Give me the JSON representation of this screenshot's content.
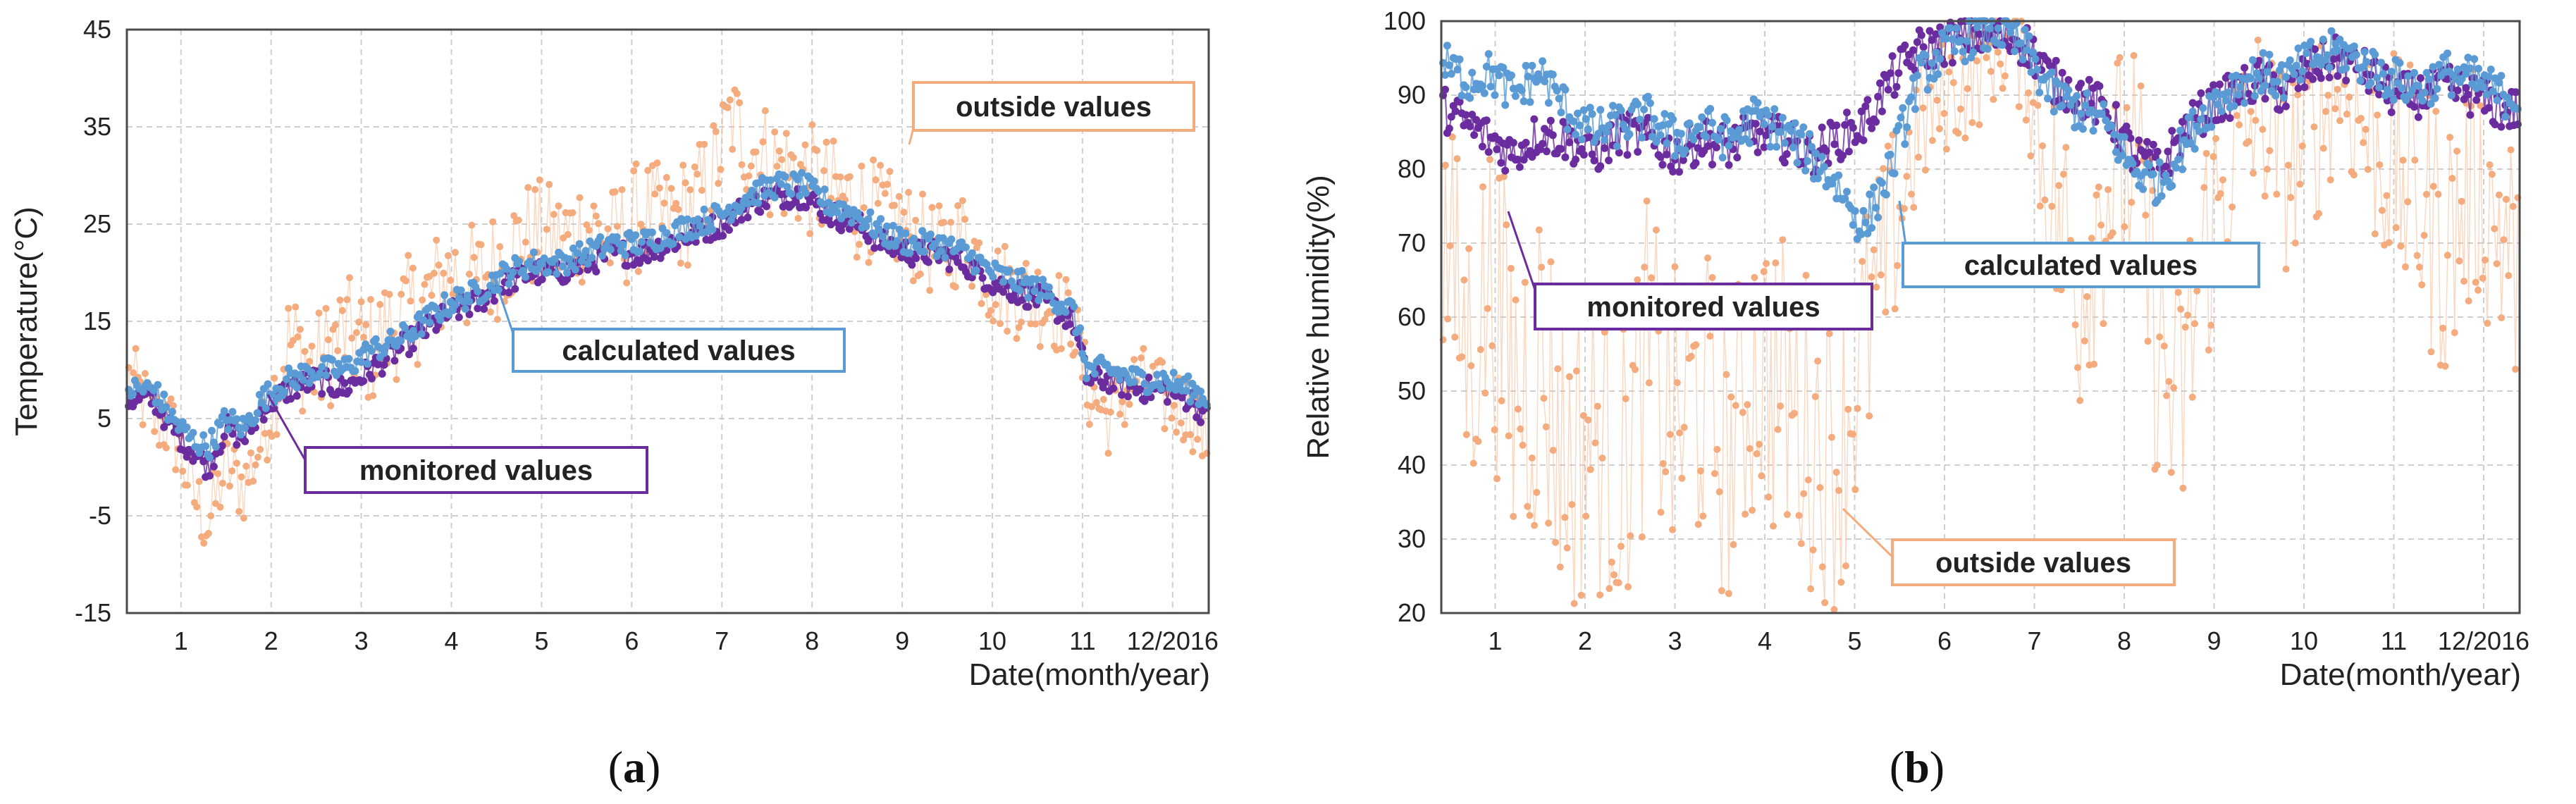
{
  "colors": {
    "outside": "#f4ab7d",
    "monitored": "#6a2c9f",
    "calculated": "#5b9bd5",
    "grid": "#cfcfcf",
    "axis": "#4a4a4a"
  },
  "chart_data": [
    {
      "panel": "a",
      "panel_label": "(a)",
      "panel_letter": "a",
      "type": "scatter",
      "title": "",
      "ylabel": "Temperature(°C)",
      "xlabel": "Date(month/year)",
      "xlim": [
        0.4,
        12.4
      ],
      "ylim": [
        -15,
        45
      ],
      "yticks": [
        -15,
        -5,
        5,
        15,
        25,
        35,
        45
      ],
      "xticks": [
        {
          "value": 1,
          "label": "1"
        },
        {
          "value": 2,
          "label": "2"
        },
        {
          "value": 3,
          "label": "3"
        },
        {
          "value": 4,
          "label": "4"
        },
        {
          "value": 5,
          "label": "5"
        },
        {
          "value": 6,
          "label": "6"
        },
        {
          "value": 7,
          "label": "7"
        },
        {
          "value": 8,
          "label": "8"
        },
        {
          "value": 9,
          "label": "9"
        },
        {
          "value": 10,
          "label": "10"
        },
        {
          "value": 11,
          "label": "11"
        },
        {
          "value": 12,
          "label": "12/2016"
        }
      ],
      "series": [
        {
          "name": "outside values",
          "color_key": "outside",
          "x": [
            0.45,
            0.7,
            0.9,
            1.15,
            1.3,
            1.5,
            1.7,
            1.9,
            2.2,
            2.5,
            2.8,
            3.1,
            3.4,
            3.7,
            4.0,
            4.3,
            4.6,
            4.9,
            5.2,
            5.5,
            5.8,
            6.1,
            6.4,
            6.7,
            6.9,
            7.1,
            7.3,
            7.6,
            7.9,
            8.2,
            8.5,
            8.8,
            9.1,
            9.4,
            9.7,
            10.0,
            10.3,
            10.6,
            10.9,
            11.05,
            11.3,
            11.6,
            11.9,
            12.2,
            12.4
          ],
          "values": [
            9,
            5,
            4,
            -3,
            -6,
            0,
            -2,
            3,
            13,
            10,
            14,
            12,
            15,
            17,
            20,
            19,
            22,
            24,
            23,
            25,
            23,
            26,
            25,
            27,
            30,
            36,
            33,
            31,
            30,
            28,
            27,
            26,
            24,
            22,
            24,
            19,
            18,
            17,
            15,
            8,
            5,
            9,
            7,
            6,
            2
          ],
          "spread": [
            4,
            4,
            4,
            4,
            4,
            4,
            4,
            4,
            6,
            6,
            6,
            6,
            6,
            6,
            6,
            6,
            6,
            6,
            6,
            6,
            6,
            6,
            6,
            6,
            6,
            5,
            6,
            6,
            6,
            6,
            6,
            5,
            5,
            5,
            5,
            5,
            5,
            5,
            4,
            4,
            4,
            4,
            4,
            4,
            4
          ]
        },
        {
          "name": "monitored values",
          "color_key": "monitored",
          "x": [
            0.45,
            0.7,
            0.9,
            1.1,
            1.3,
            1.5,
            1.7,
            1.9,
            2.2,
            2.5,
            2.8,
            3.1,
            3.4,
            3.7,
            4.0,
            4.3,
            4.6,
            4.9,
            5.2,
            5.5,
            5.8,
            6.1,
            6.4,
            6.7,
            7.0,
            7.3,
            7.6,
            7.9,
            8.2,
            8.5,
            8.8,
            9.1,
            9.4,
            9.7,
            10.0,
            10.3,
            10.6,
            10.9,
            11.05,
            11.3,
            11.6,
            11.9,
            12.2,
            12.4
          ],
          "values": [
            7,
            7,
            4,
            2,
            0,
            4,
            3,
            6,
            8,
            9,
            8,
            10,
            12,
            14,
            16,
            17,
            19,
            20,
            20,
            21,
            22,
            22,
            23,
            24,
            25,
            27,
            28,
            28,
            26,
            25,
            23,
            22,
            22,
            21,
            19,
            18,
            17,
            15,
            9,
            9,
            8,
            8,
            7,
            5
          ]
        },
        {
          "name": "calculated values",
          "color_key": "calculated",
          "x": [
            0.45,
            0.7,
            0.9,
            1.1,
            1.3,
            1.5,
            1.7,
            1.9,
            2.2,
            2.5,
            2.8,
            3.1,
            3.4,
            3.7,
            4.0,
            4.3,
            4.6,
            4.9,
            5.2,
            5.5,
            5.8,
            6.1,
            6.4,
            6.7,
            7.0,
            7.3,
            7.6,
            7.9,
            8.2,
            8.5,
            8.8,
            9.1,
            9.4,
            9.7,
            10.0,
            10.3,
            10.6,
            10.9,
            11.05,
            11.3,
            11.6,
            11.9,
            12.2,
            12.4
          ],
          "values": [
            8,
            8,
            5,
            3,
            2,
            5,
            4,
            7,
            9,
            10,
            10,
            12,
            13,
            15,
            17,
            18,
            20,
            21,
            21,
            22,
            23,
            23,
            24,
            25,
            26,
            28,
            29,
            29,
            27,
            26,
            24,
            23,
            23,
            22,
            20,
            19,
            18,
            16,
            10,
            10,
            9,
            9,
            8,
            7
          ]
        }
      ],
      "annotations": [
        {
          "text": "outside values",
          "series": "outside values",
          "color_key": "outside"
        },
        {
          "text": "calculated values",
          "series": "calculated values",
          "color_key": "calculated"
        },
        {
          "text": "monitored values",
          "series": "monitored values",
          "color_key": "monitored"
        }
      ],
      "grid": true
    },
    {
      "panel": "b",
      "panel_label": "(b)",
      "panel_letter": "b",
      "type": "scatter",
      "title": "",
      "ylabel": "Relative humidity(%)",
      "xlabel": "Date(month/year)",
      "xlim": [
        0.4,
        12.4
      ],
      "ylim": [
        20,
        100
      ],
      "yticks": [
        20,
        30,
        40,
        50,
        60,
        70,
        80,
        90,
        100
      ],
      "xticks": [
        {
          "value": 1,
          "label": "1"
        },
        {
          "value": 2,
          "label": "2"
        },
        {
          "value": 3,
          "label": "3"
        },
        {
          "value": 4,
          "label": "4"
        },
        {
          "value": 5,
          "label": "5"
        },
        {
          "value": 6,
          "label": "6"
        },
        {
          "value": 7,
          "label": "7"
        },
        {
          "value": 8,
          "label": "8"
        },
        {
          "value": 9,
          "label": "9"
        },
        {
          "value": 10,
          "label": "10"
        },
        {
          "value": 11,
          "label": "11"
        },
        {
          "value": 12,
          "label": "12/2016"
        }
      ],
      "series": [
        {
          "name": "outside values",
          "color_key": "outside",
          "x": [
            0.45,
            0.7,
            0.95,
            1.2,
            1.5,
            1.8,
            2.1,
            2.4,
            2.7,
            3.0,
            3.3,
            3.6,
            3.9,
            4.2,
            4.5,
            4.8,
            5.1,
            5.4,
            5.7,
            6.0,
            6.3,
            6.6,
            6.9,
            7.2,
            7.5,
            7.8,
            8.1,
            8.4,
            8.6,
            8.9,
            9.2,
            9.5,
            9.8,
            10.1,
            10.4,
            10.7,
            11.0,
            11.3,
            11.6,
            11.9,
            12.2,
            12.4
          ],
          "values": [
            70,
            55,
            65,
            50,
            55,
            40,
            45,
            38,
            55,
            45,
            50,
            40,
            55,
            50,
            45,
            42,
            55,
            70,
            85,
            90,
            92,
            96,
            95,
            75,
            65,
            78,
            80,
            55,
            45,
            70,
            80,
            88,
            80,
            85,
            92,
            85,
            80,
            75,
            70,
            78,
            72,
            65
          ],
          "spread": [
            20,
            22,
            22,
            25,
            25,
            22,
            22,
            20,
            22,
            22,
            22,
            20,
            22,
            22,
            22,
            22,
            20,
            15,
            10,
            8,
            8,
            6,
            8,
            18,
            20,
            18,
            18,
            22,
            22,
            18,
            15,
            12,
            14,
            14,
            10,
            14,
            16,
            18,
            20,
            16,
            18,
            18
          ]
        },
        {
          "name": "monitored values",
          "color_key": "monitored",
          "x": [
            0.45,
            0.7,
            0.95,
            1.2,
            1.5,
            1.8,
            2.1,
            2.4,
            2.7,
            3.0,
            3.3,
            3.6,
            3.9,
            4.2,
            4.5,
            4.8,
            5.1,
            5.4,
            5.7,
            6.0,
            6.3,
            6.6,
            6.9,
            7.2,
            7.5,
            7.8,
            8.1,
            8.4,
            8.6,
            8.9,
            9.2,
            9.5,
            9.8,
            10.1,
            10.4,
            10.7,
            11.0,
            11.3,
            11.6,
            11.9,
            12.2,
            12.4
          ],
          "values": [
            88,
            86,
            84,
            82,
            85,
            84,
            82,
            85,
            84,
            82,
            84,
            83,
            85,
            84,
            82,
            84,
            86,
            92,
            96,
            97,
            98,
            98,
            97,
            92,
            90,
            88,
            82,
            80,
            84,
            88,
            90,
            92,
            90,
            94,
            95,
            93,
            90,
            90,
            91,
            90,
            88,
            88
          ]
        },
        {
          "name": "calculated values",
          "color_key": "calculated",
          "x": [
            0.45,
            0.7,
            0.95,
            1.2,
            1.5,
            1.8,
            2.1,
            2.4,
            2.7,
            3.0,
            3.3,
            3.6,
            3.9,
            4.2,
            4.5,
            4.8,
            5.1,
            5.4,
            5.7,
            6.0,
            6.3,
            6.6,
            6.9,
            7.2,
            7.5,
            7.8,
            8.1,
            8.4,
            8.6,
            8.9,
            9.2,
            9.5,
            9.8,
            10.1,
            10.4,
            10.7,
            11.0,
            11.3,
            11.6,
            11.9,
            12.2,
            12.4
          ],
          "values": [
            94,
            92,
            93,
            90,
            93,
            88,
            85,
            86,
            87,
            84,
            86,
            84,
            87,
            85,
            82,
            78,
            72,
            80,
            92,
            96,
            98,
            99,
            96,
            90,
            88,
            86,
            80,
            78,
            82,
            88,
            91,
            93,
            92,
            95,
            96,
            94,
            92,
            91,
            93,
            92,
            90,
            90
          ]
        }
      ],
      "annotations": [
        {
          "text": "calculated values",
          "series": "calculated values",
          "color_key": "calculated"
        },
        {
          "text": "monitored values",
          "series": "monitored values",
          "color_key": "monitored"
        },
        {
          "text": "outside values",
          "series": "outside values",
          "color_key": "outside"
        }
      ],
      "grid": true
    }
  ]
}
